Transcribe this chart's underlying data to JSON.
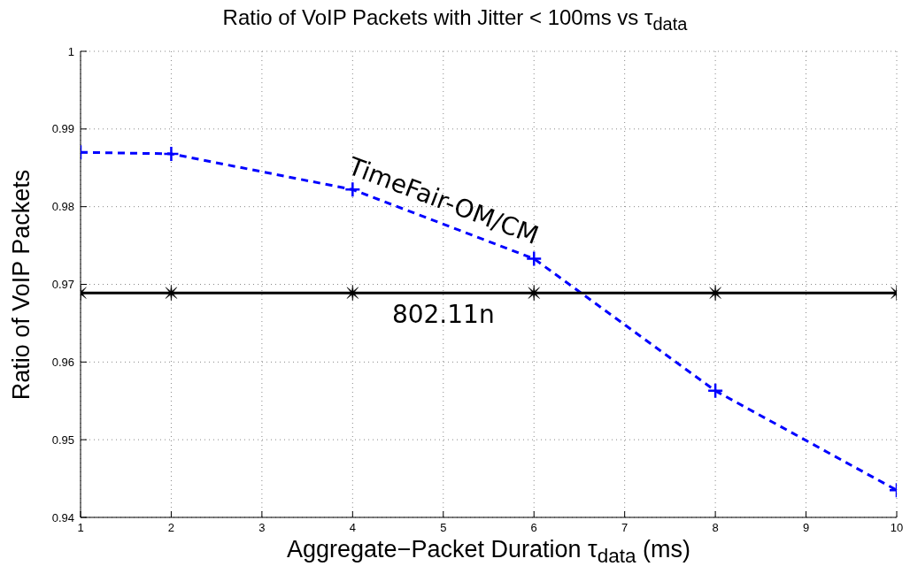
{
  "chart_data": {
    "type": "line",
    "title": "Ratio of VoIP Packets with Jitter < 100ms vs τ$_{data}$",
    "xlabel": "Aggregate−Packet Duration τ$_{data}$ (ms)",
    "ylabel": "Ratio of VoIP Packets",
    "x": [
      1,
      2,
      4,
      6,
      8,
      10
    ],
    "series": [
      {
        "name": "TimeFair-OM/CM",
        "color": "#0000ff",
        "values": [
          0.987,
          0.9868,
          0.9822,
          0.9733,
          0.9563,
          0.9435
        ],
        "marker": "cross",
        "line_style": "dashed"
      },
      {
        "name": "802.11n",
        "color": "#000000",
        "values": [
          0.9689,
          0.9689,
          0.9689,
          0.9689,
          0.9689,
          0.9689
        ],
        "marker": "star",
        "line_style": "solid"
      }
    ],
    "xlim": [
      1,
      10
    ],
    "xticks": [
      1,
      2,
      3,
      4,
      5,
      6,
      7,
      8,
      9,
      10
    ],
    "ylim": [
      0.94,
      1
    ],
    "yticks": [
      0.94,
      0.95,
      0.96,
      0.97,
      0.98,
      0.99,
      1
    ],
    "grid": true
  }
}
